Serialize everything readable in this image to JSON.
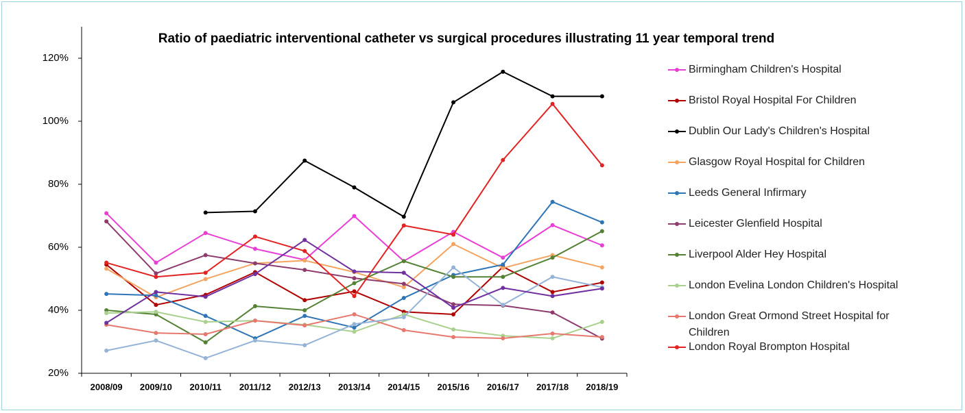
{
  "chart_data": {
    "type": "line",
    "title": "Ratio of paediatric interventional catheter vs surgical procedures illustrating 11 year temporal trend",
    "categories": [
      "2008/09",
      "2009/10",
      "2010/11",
      "2011/12",
      "2012/13",
      "2013/14",
      "2014/15",
      "2015/16",
      "2016/17",
      "2017/18",
      "2018/19"
    ],
    "ylim": [
      20,
      130
    ],
    "yticks": [
      {
        "value": 20,
        "label": "20%"
      },
      {
        "value": 40,
        "label": "40%"
      },
      {
        "value": 60,
        "label": "60%"
      },
      {
        "value": 80,
        "label": "80%"
      },
      {
        "value": 100,
        "label": "100%"
      },
      {
        "value": 120,
        "label": "120%"
      }
    ],
    "grid": false,
    "legend": "right",
    "series": [
      {
        "name": "Birmingham Children's Hospital",
        "color": "#e83fd6",
        "values": [
          70.8,
          55.1,
          64.5,
          59.5,
          56,
          69.9,
          55.6,
          64.9,
          56.7,
          67,
          60.6
        ]
      },
      {
        "name": "Bristol Royal Hospital For Children",
        "color": "#b00000",
        "values": [
          54.5,
          41.7,
          44.9,
          52.1,
          43.2,
          46,
          39.5,
          38.7,
          53.8,
          45.8,
          48.8
        ]
      },
      {
        "name": "Dublin Our Lady's Children's Hospital",
        "color": "#000000",
        "values": [
          null,
          null,
          71,
          71.4,
          87.5,
          79,
          69.7,
          106,
          115.7,
          107.9,
          107.9
        ]
      },
      {
        "name": "Glasgow Royal Hospital for Children",
        "color": "#f4a460",
        "values": [
          53.2,
          44.1,
          49.9,
          54.9,
          55.8,
          52.1,
          47.3,
          61,
          53.4,
          57.5,
          53.6
        ]
      },
      {
        "name": "Leeds General Infirmary",
        "color": "#2e75b6",
        "values": [
          45.2,
          44.7,
          38.2,
          31.1,
          38.2,
          34.5,
          43.9,
          51.2,
          54.5,
          74.4,
          67.9
        ]
      },
      {
        "name": "Leicester Glenfield Hospital",
        "color": "#8e3b6e",
        "values": [
          68.2,
          51.7,
          57.5,
          54.9,
          52.8,
          50.2,
          48.4,
          41.9,
          41.5,
          39.3,
          31
        ]
      },
      {
        "name": "Liverpool Alder Hey Hospital",
        "color": "#548235",
        "values": [
          40,
          38.7,
          29.8,
          41.3,
          40,
          48.6,
          55.6,
          50.6,
          50.6,
          56.7,
          65.1
        ]
      },
      {
        "name": "London Evelina London Children's Hospital",
        "color": "#a9d18e",
        "values": [
          39.1,
          39.5,
          36.3,
          36.7,
          35.4,
          33.2,
          38.7,
          33.9,
          31.9,
          31.1,
          36.3
        ]
      },
      {
        "name": "London Great Ormond Street Hospital for Children",
        "color": "#e6786e",
        "values": [
          35.4,
          32.8,
          32.4,
          36.7,
          35.2,
          38.7,
          33.7,
          31.5,
          31.1,
          32.6,
          31.5
        ]
      },
      {
        "name": "London Royal Brompton Hospital",
        "color": "#e32322",
        "values": [
          55.1,
          50.6,
          51.9,
          63.4,
          58.8,
          44.5,
          66.9,
          64,
          87.7,
          105.5,
          86
        ]
      },
      {
        "color": "#95b3d7",
        "values": [
          27.2,
          30.4,
          24.8,
          30.4,
          28.9,
          35.6,
          37.8,
          53.6,
          41.7,
          50.6,
          47.3
        ]
      },
      {
        "color": "#7030a0",
        "values": [
          36,
          45.8,
          44.3,
          51.5,
          62.3,
          52.3,
          51.9,
          40.8,
          47.1,
          44.5,
          46.9
        ]
      }
    ]
  }
}
